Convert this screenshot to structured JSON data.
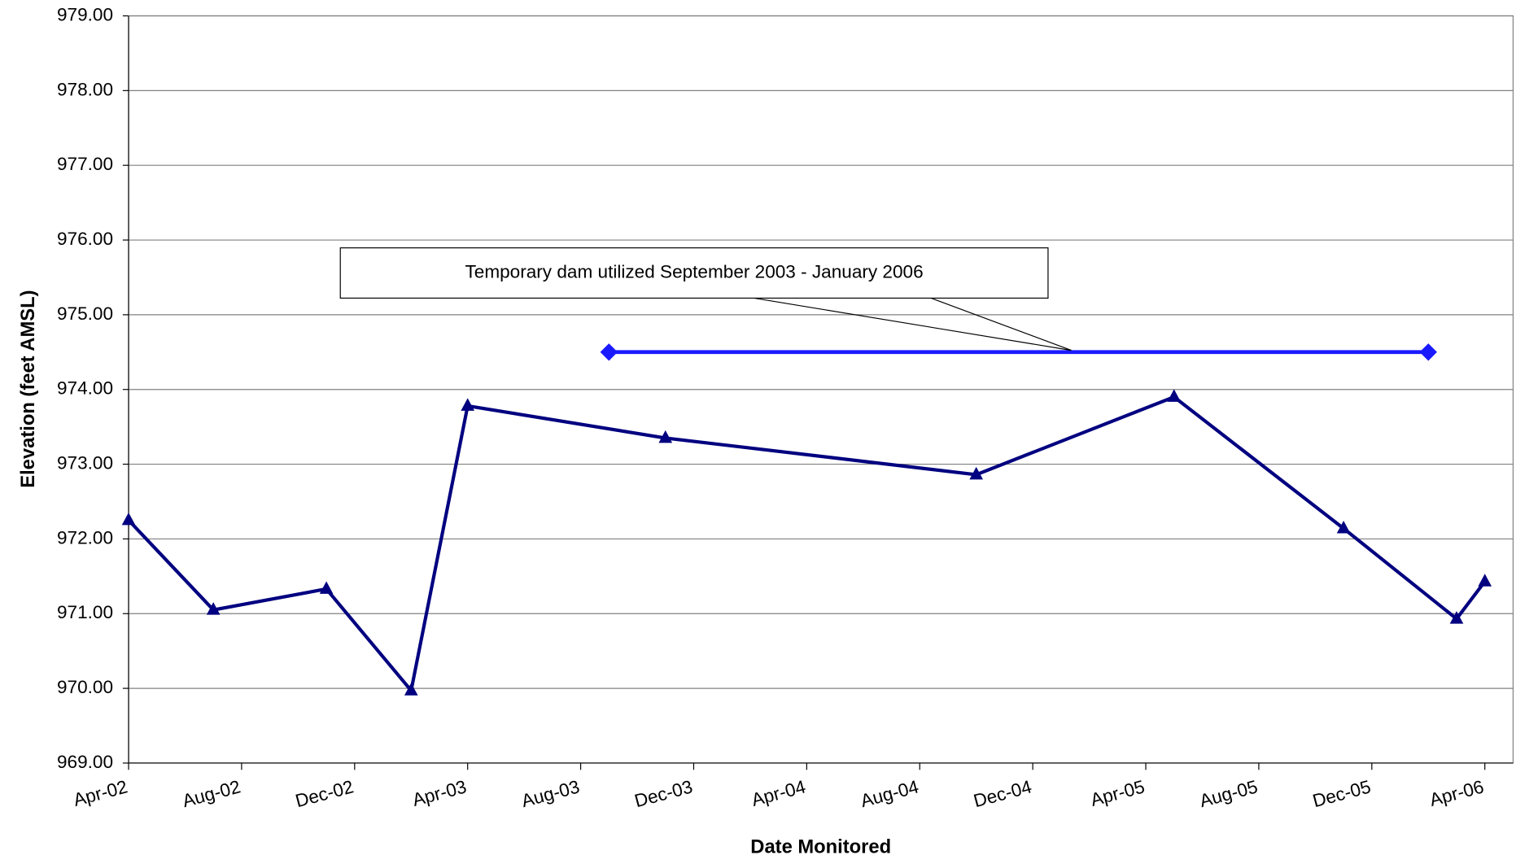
{
  "chart_data": {
    "type": "line",
    "x_label": "Date Monitored",
    "y_label": "Elevation (feet AMSL)",
    "annotation": "Temporary dam utilized September 2003 - January 2006",
    "xlim": [
      "2002-04",
      "2006-05"
    ],
    "xticks": [
      {
        "value": "2002-04",
        "label": "Apr-02"
      },
      {
        "value": "2002-08",
        "label": "Aug-02"
      },
      {
        "value": "2002-12",
        "label": "Dec-02"
      },
      {
        "value": "2003-04",
        "label": "Apr-03"
      },
      {
        "value": "2003-08",
        "label": "Aug-03"
      },
      {
        "value": "2003-12",
        "label": "Dec-03"
      },
      {
        "value": "2004-04",
        "label": "Apr-04"
      },
      {
        "value": "2004-08",
        "label": "Aug-04"
      },
      {
        "value": "2004-12",
        "label": "Dec-04"
      },
      {
        "value": "2005-04",
        "label": "Apr-05"
      },
      {
        "value": "2005-08",
        "label": "Aug-05"
      },
      {
        "value": "2005-12",
        "label": "Dec-05"
      },
      {
        "value": "2006-04",
        "label": "Apr-06"
      }
    ],
    "ylim": [
      969,
      979
    ],
    "yticks": [
      {
        "value": 969,
        "label": "969.00"
      },
      {
        "value": 970,
        "label": "970.00"
      },
      {
        "value": 971,
        "label": "971.00"
      },
      {
        "value": 972,
        "label": "972.00"
      },
      {
        "value": 973,
        "label": "973.00"
      },
      {
        "value": 974,
        "label": "974.00"
      },
      {
        "value": 975,
        "label": "975.00"
      },
      {
        "value": 976,
        "label": "976.00"
      },
      {
        "value": 977,
        "label": "977.00"
      },
      {
        "value": 978,
        "label": "978.00"
      },
      {
        "value": 979,
        "label": "979.00"
      }
    ],
    "grid": true,
    "series": [
      {
        "color": "#000080",
        "marker": "triangle",
        "x": [
          "2002-04",
          "2002-07",
          "2002-11",
          "2003-02",
          "2003-04",
          "2003-11",
          "2004-10",
          "2005-05",
          "2005-11",
          "2006-03",
          "2006-04"
        ],
        "values": [
          972.25,
          971.05,
          971.33,
          969.97,
          973.78,
          973.35,
          972.86,
          973.9,
          972.14,
          970.93,
          971.43
        ]
      },
      {
        "color": "#1a1aff",
        "marker": "diamond",
        "x": [
          "2003-09",
          "2006-02"
        ],
        "values": [
          974.5,
          974.5
        ]
      }
    ]
  }
}
